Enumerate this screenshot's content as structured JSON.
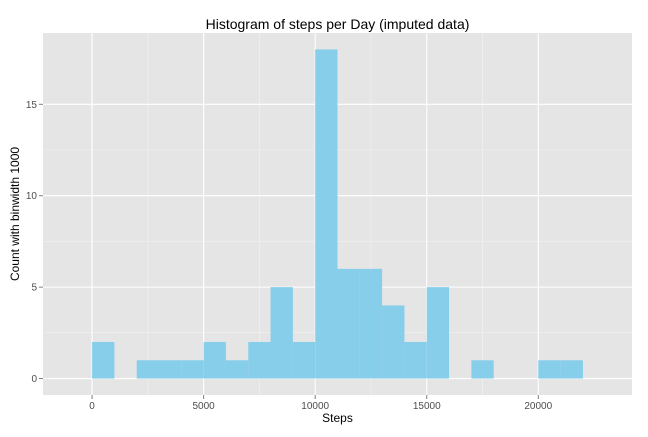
{
  "colors": {
    "panel_background": "#e5e5e5",
    "grid_major": "#ffffff",
    "grid_minor": "#f2f2f2",
    "bar_fill": "#87ceeb",
    "tick_mark": "#7f7f7f"
  },
  "chart_data": {
    "type": "bar",
    "title": "Histogram of steps per Day (imputed data)",
    "xlabel": "Steps",
    "ylabel": "Count with binwidth 1000",
    "binwidth": 1000,
    "bins": [
      {
        "x0": 0,
        "x1": 1000,
        "count": 2
      },
      {
        "x0": 1000,
        "x1": 2000,
        "count": 0
      },
      {
        "x0": 2000,
        "x1": 3000,
        "count": 1
      },
      {
        "x0": 3000,
        "x1": 4000,
        "count": 1
      },
      {
        "x0": 4000,
        "x1": 5000,
        "count": 1
      },
      {
        "x0": 5000,
        "x1": 6000,
        "count": 2
      },
      {
        "x0": 6000,
        "x1": 7000,
        "count": 1
      },
      {
        "x0": 7000,
        "x1": 8000,
        "count": 2
      },
      {
        "x0": 8000,
        "x1": 9000,
        "count": 5
      },
      {
        "x0": 9000,
        "x1": 10000,
        "count": 2
      },
      {
        "x0": 10000,
        "x1": 11000,
        "count": 18
      },
      {
        "x0": 11000,
        "x1": 12000,
        "count": 6
      },
      {
        "x0": 12000,
        "x1": 13000,
        "count": 6
      },
      {
        "x0": 13000,
        "x1": 14000,
        "count": 4
      },
      {
        "x0": 14000,
        "x1": 15000,
        "count": 2
      },
      {
        "x0": 15000,
        "x1": 16000,
        "count": 5
      },
      {
        "x0": 16000,
        "x1": 17000,
        "count": 0
      },
      {
        "x0": 17000,
        "x1": 18000,
        "count": 1
      },
      {
        "x0": 18000,
        "x1": 19000,
        "count": 0
      },
      {
        "x0": 19000,
        "x1": 20000,
        "count": 0
      },
      {
        "x0": 20000,
        "x1": 21000,
        "count": 1
      },
      {
        "x0": 21000,
        "x1": 22000,
        "count": 1
      }
    ],
    "xlim": [
      -2200,
      24200
    ],
    "ylim": [
      -0.9,
      18.9
    ],
    "x_ticks": [
      0,
      5000,
      10000,
      15000,
      20000
    ],
    "x_tick_labels": [
      "0",
      "5000",
      "10000",
      "15000",
      "20000"
    ],
    "y_ticks": [
      0,
      5,
      10,
      15
    ],
    "y_tick_labels": [
      "0",
      "5",
      "10",
      "15"
    ],
    "grid": true,
    "legend": "none"
  }
}
